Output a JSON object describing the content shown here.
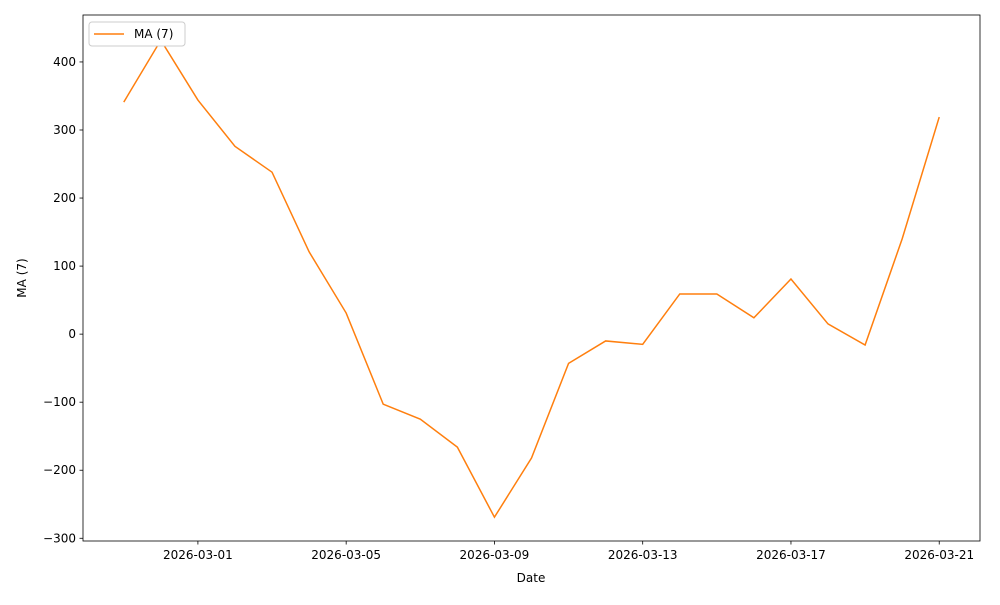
{
  "chart_data": {
    "type": "line",
    "title": "",
    "xlabel": "Date",
    "ylabel": "MA (7)",
    "x": [
      "2026-02-27",
      "2026-02-28",
      "2026-03-01",
      "2026-03-02",
      "2026-03-03",
      "2026-03-04",
      "2026-03-05",
      "2026-03-06",
      "2026-03-07",
      "2026-03-08",
      "2026-03-09",
      "2026-03-10",
      "2026-03-11",
      "2026-03-12",
      "2026-03-13",
      "2026-03-14",
      "2026-03-15",
      "2026-03-16",
      "2026-03-17",
      "2026-03-18",
      "2026-03-19",
      "2026-03-20",
      "2026-03-21"
    ],
    "series": [
      {
        "name": "MA (7)",
        "color": "#ff7f0e",
        "values": [
          341,
          432,
          344,
          276,
          238,
          121,
          31,
          -103,
          -125,
          -166,
          -269,
          -182,
          -43,
          -10,
          -15,
          59,
          59,
          24,
          81,
          15,
          -16,
          140,
          319
        ]
      }
    ],
    "xticks": [
      "2026-03-01",
      "2026-03-05",
      "2026-03-09",
      "2026-03-13",
      "2026-03-17",
      "2026-03-21"
    ],
    "yticks": [
      -300,
      -200,
      -100,
      0,
      100,
      200,
      300,
      400
    ],
    "ytick_labels": [
      "−300",
      "−200",
      "−100",
      "0",
      "100",
      "200",
      "300",
      "400"
    ],
    "xlim": [
      "2026-02-25.9",
      "2026-03-22.1"
    ],
    "ylim": [
      -304,
      469
    ],
    "grid": false,
    "legend": "upper left"
  }
}
